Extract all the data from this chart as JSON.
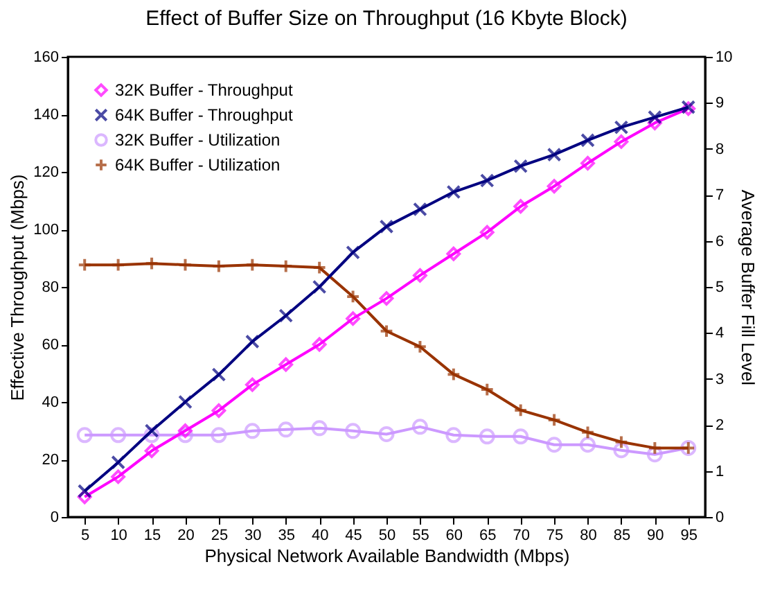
{
  "chart_data": {
    "type": "line",
    "title": "Effect of Buffer Size on Throughput (16 Kbyte Block)",
    "xlabel": "Physical Network Available Bandwidth (Mbps)",
    "ylabel": "Effective Throughput (Mbps)",
    "y2label": "Average Buffer Fill Level",
    "categories": [
      "5",
      "10",
      "15",
      "20",
      "25",
      "30",
      "35",
      "40",
      "45",
      "50",
      "55",
      "60",
      "65",
      "70",
      "75",
      "80",
      "85",
      "90",
      "95"
    ],
    "series": [
      {
        "name": "32K Buffer - Throughput",
        "color": "#ff00ff",
        "marker": "diamond",
        "values": [
          7,
          14,
          23,
          30,
          37,
          46,
          53,
          60,
          69,
          76,
          84,
          91.5,
          99,
          108,
          115,
          123,
          130.5,
          137,
          142
        ]
      },
      {
        "name": "64K Buffer - Throughput",
        "color": "#000080",
        "marker": "cross",
        "values": [
          9,
          19,
          30,
          40,
          49.5,
          61,
          70,
          80,
          92,
          101,
          107,
          113,
          117,
          122,
          126,
          131,
          135.5,
          139,
          142.5
        ]
      },
      {
        "name": "32K Buffer - Utilization",
        "color": "#cc99ff",
        "marker": "circle",
        "axis": "y2",
        "values": [
          1.78,
          1.78,
          1.78,
          1.78,
          1.78,
          1.87,
          1.9,
          1.93,
          1.87,
          1.8,
          1.96,
          1.78,
          1.75,
          1.75,
          1.57,
          1.57,
          1.45,
          1.36,
          1.5
        ]
      },
      {
        "name": "64K Buffer - Utilization",
        "color": "#993300",
        "marker": "plus",
        "axis": "y2",
        "values": [
          5.48,
          5.48,
          5.51,
          5.48,
          5.45,
          5.48,
          5.45,
          5.42,
          4.79,
          4.04,
          3.7,
          3.1,
          2.77,
          2.32,
          2.11,
          1.84,
          1.63,
          1.5,
          1.5
        ]
      }
    ],
    "ylim": [
      0,
      160
    ],
    "yticks": [
      0,
      20,
      40,
      60,
      80,
      100,
      120,
      140,
      160
    ],
    "y2lim": [
      0,
      10
    ],
    "y2ticks": [
      0,
      1,
      2,
      3,
      4,
      5,
      6,
      7,
      8,
      9,
      10
    ],
    "grid": false,
    "legend": "top left",
    "line_style": "solid"
  }
}
